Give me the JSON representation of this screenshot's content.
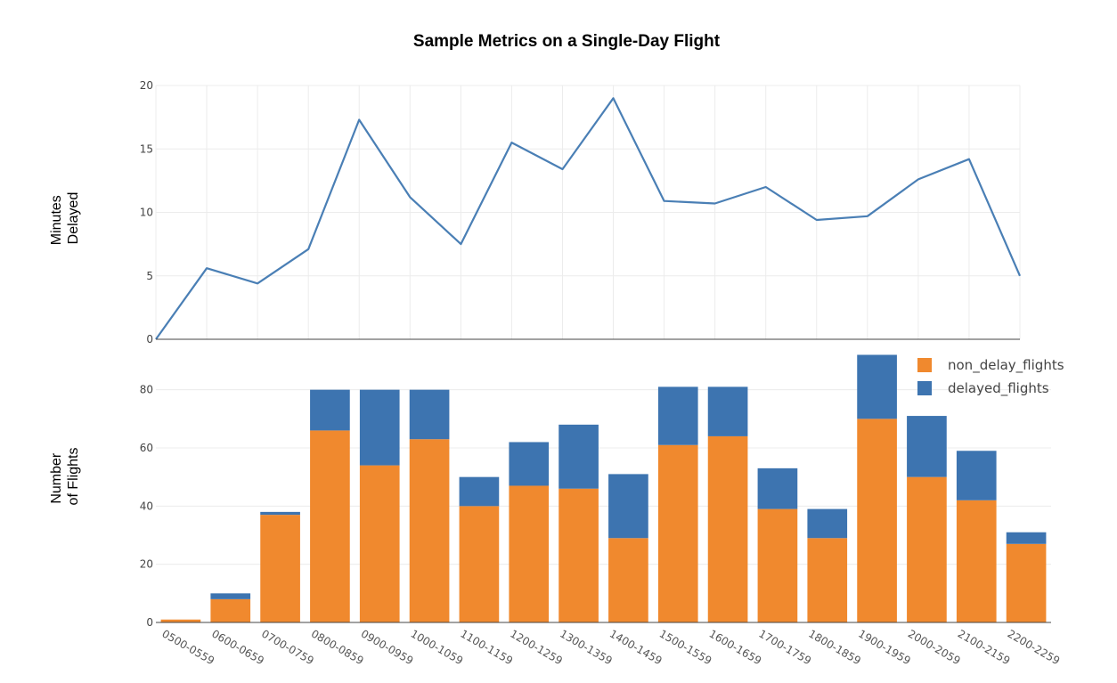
{
  "chart_data": [
    {
      "type": "line",
      "title": "Sample Metrics on a Single-Day Flight",
      "ylabel": [
        "Minutes",
        "Delayed"
      ],
      "ylim": [
        0,
        20
      ],
      "yticks": [
        0,
        5,
        10,
        15,
        20
      ],
      "grid": true,
      "color": "#4a7fb5",
      "categories": [
        "0500-0559",
        "0600-0659",
        "0700-0759",
        "0800-0859",
        "0900-0959",
        "1000-1059",
        "1100-1159",
        "1200-1259",
        "1300-1359",
        "1400-1459",
        "1500-1559",
        "1600-1659",
        "1700-1759",
        "1800-1859",
        "1900-1959",
        "2000-2059",
        "2100-2159",
        "2200-2259"
      ],
      "values": [
        0,
        5.6,
        4.4,
        7.1,
        17.3,
        11.2,
        7.5,
        15.5,
        13.4,
        19.0,
        10.9,
        10.7,
        12.0,
        9.4,
        9.7,
        12.6,
        14.2,
        5.0
      ]
    },
    {
      "type": "bar",
      "stacked": true,
      "ylabel": [
        "Number",
        "of Flights"
      ],
      "ylim": [
        0,
        90
      ],
      "yticks": [
        0,
        20,
        40,
        60,
        80
      ],
      "grid": true,
      "legend_position": "top-right",
      "categories": [
        "0500-0559",
        "0600-0659",
        "0700-0759",
        "0800-0859",
        "0900-0959",
        "1000-1059",
        "1100-1159",
        "1200-1259",
        "1300-1359",
        "1400-1459",
        "1500-1559",
        "1600-1659",
        "1700-1759",
        "1800-1859",
        "1900-1959",
        "2000-2059",
        "2100-2159",
        "2200-2259"
      ],
      "series": [
        {
          "name": "non_delay_flights",
          "color": "#f0892e",
          "values": [
            1,
            8,
            37,
            66,
            54,
            63,
            40,
            47,
            46,
            29,
            61,
            64,
            39,
            29,
            70,
            50,
            42,
            27
          ]
        },
        {
          "name": "delayed_flights",
          "color": "#3d74b0",
          "values": [
            0,
            2,
            1,
            14,
            26,
            17,
            10,
            15,
            22,
            22,
            20,
            17,
            14,
            10,
            22,
            21,
            17,
            4
          ]
        }
      ]
    }
  ]
}
